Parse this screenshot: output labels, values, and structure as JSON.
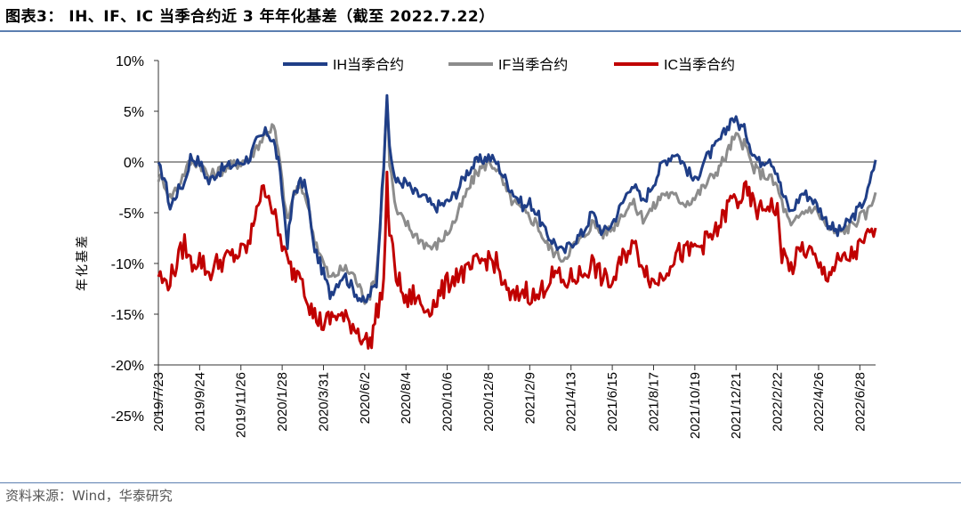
{
  "header": {
    "title": "图表3： IH、IF、IC 当季合约近 3 年年化基差（截至 2022.7.22）"
  },
  "footer": {
    "source": "资料来源：Wind，华泰研究"
  },
  "colors": {
    "IH": "#1f3e87",
    "IF": "#8c8c8c",
    "IC": "#c00000",
    "rule": "#5b7fb0"
  },
  "chart_data": {
    "type": "line",
    "title": "",
    "ylabel": "年化基差",
    "xlabel": "",
    "ylim": [
      -25,
      10
    ],
    "yticks": [
      "10%",
      "5%",
      "0%",
      "-5%",
      "-10%",
      "-15%",
      "-20%",
      "-25%"
    ],
    "xlim": [
      "2019-07-23",
      "2022-07-22"
    ],
    "xticks": [
      "2019/7/23",
      "2019/9/24",
      "2019/11/26",
      "2020/1/28",
      "2020/3/31",
      "2020/6/2",
      "2020/8/4",
      "2020/10/6",
      "2020/12/8",
      "2021/2/9",
      "2021/4/13",
      "2021/6/15",
      "2021/8/17",
      "2021/10/19",
      "2021/12/21",
      "2022/2/22",
      "2022/4/26",
      "2022/6/28"
    ],
    "grid": false,
    "legend_position": "top",
    "series": [
      {
        "name": "IH当季合约",
        "points": [
          [
            "2019-07-23",
            -0.5
          ],
          [
            "2019-08-01",
            -1.5
          ],
          [
            "2019-08-10",
            -4.5
          ],
          [
            "2019-08-20",
            -3
          ],
          [
            "2019-09-01",
            -2
          ],
          [
            "2019-09-10",
            0.5
          ],
          [
            "2019-09-24",
            0
          ],
          [
            "2019-10-08",
            -2
          ],
          [
            "2019-10-20",
            -1
          ],
          [
            "2019-11-05",
            -0.5
          ],
          [
            "2019-11-26",
            0
          ],
          [
            "2019-12-10",
            0.5
          ],
          [
            "2019-12-20",
            2
          ],
          [
            "2020-01-05",
            3
          ],
          [
            "2020-01-15",
            2
          ],
          [
            "2020-01-22",
            0
          ],
          [
            "2020-01-28",
            -3
          ],
          [
            "2020-02-05",
            -8
          ],
          [
            "2020-02-15",
            -3
          ],
          [
            "2020-02-25",
            -2
          ],
          [
            "2020-03-05",
            -2.5
          ],
          [
            "2020-03-15",
            -8
          ],
          [
            "2020-03-31",
            -11
          ],
          [
            "2020-04-10",
            -13
          ],
          [
            "2020-04-20",
            -12
          ],
          [
            "2020-05-01",
            -11
          ],
          [
            "2020-05-15",
            -12.5
          ],
          [
            "2020-06-02",
            -14
          ],
          [
            "2020-06-10",
            -13
          ],
          [
            "2020-06-20",
            -12
          ],
          [
            "2020-07-01",
            0
          ],
          [
            "2020-07-06",
            7
          ],
          [
            "2020-07-10",
            1
          ],
          [
            "2020-07-20",
            -2
          ],
          [
            "2020-08-04",
            -2
          ],
          [
            "2020-08-15",
            -3
          ],
          [
            "2020-09-01",
            -3.5
          ],
          [
            "2020-09-15",
            -4.5
          ],
          [
            "2020-10-06",
            -4
          ],
          [
            "2020-10-20",
            -3
          ],
          [
            "2020-11-05",
            -1
          ],
          [
            "2020-11-20",
            0
          ],
          [
            "2020-12-08",
            0.5
          ],
          [
            "2020-12-20",
            0
          ],
          [
            "2021-01-05",
            -2
          ],
          [
            "2021-01-15",
            -3
          ],
          [
            "2021-02-01",
            -4.5
          ],
          [
            "2021-02-09",
            -4
          ],
          [
            "2021-02-20",
            -5
          ],
          [
            "2021-03-05",
            -7
          ],
          [
            "2021-03-20",
            -8
          ],
          [
            "2021-04-01",
            -9
          ],
          [
            "2021-04-13",
            -8
          ],
          [
            "2021-05-01",
            -7
          ],
          [
            "2021-05-15",
            -5
          ],
          [
            "2021-06-01",
            -7
          ],
          [
            "2021-06-15",
            -6
          ],
          [
            "2021-07-01",
            -4
          ],
          [
            "2021-07-15",
            -2
          ],
          [
            "2021-08-01",
            -4
          ],
          [
            "2021-08-17",
            -2
          ],
          [
            "2021-09-01",
            0
          ],
          [
            "2021-09-20",
            1
          ],
          [
            "2021-10-05",
            -0.5
          ],
          [
            "2021-10-19",
            -2
          ],
          [
            "2021-11-01",
            0
          ],
          [
            "2021-11-20",
            1.5
          ],
          [
            "2021-12-05",
            3
          ],
          [
            "2021-12-15",
            4.5
          ],
          [
            "2021-12-21",
            4
          ],
          [
            "2022-01-05",
            3
          ],
          [
            "2022-01-15",
            1
          ],
          [
            "2022-01-25",
            0
          ],
          [
            "2022-02-10",
            0.5
          ],
          [
            "2022-02-22",
            -1
          ],
          [
            "2022-03-01",
            -3
          ],
          [
            "2022-03-15",
            -5
          ],
          [
            "2022-04-01",
            -3
          ],
          [
            "2022-04-15",
            -3.5
          ],
          [
            "2022-04-26",
            -4.5
          ],
          [
            "2022-05-10",
            -6
          ],
          [
            "2022-05-25",
            -7
          ],
          [
            "2022-06-10",
            -6
          ],
          [
            "2022-06-28",
            -4.5
          ],
          [
            "2022-07-10",
            -3
          ],
          [
            "2022-07-22",
            0.2
          ]
        ]
      },
      {
        "name": "IF当季合约",
        "points": [
          [
            "2019-07-23",
            -1.5
          ],
          [
            "2019-08-01",
            -2
          ],
          [
            "2019-08-10",
            -3.5
          ],
          [
            "2019-08-20",
            -2.5
          ],
          [
            "2019-09-01",
            -1
          ],
          [
            "2019-09-10",
            0
          ],
          [
            "2019-09-24",
            0
          ],
          [
            "2019-10-08",
            -1.5
          ],
          [
            "2019-10-20",
            -1
          ],
          [
            "2019-11-05",
            -0.5
          ],
          [
            "2019-11-26",
            0
          ],
          [
            "2019-12-10",
            0.5
          ],
          [
            "2019-12-20",
            1.5
          ],
          [
            "2020-01-05",
            3
          ],
          [
            "2020-01-15",
            3.5
          ],
          [
            "2020-01-22",
            1
          ],
          [
            "2020-01-28",
            -2
          ],
          [
            "2020-02-05",
            -6
          ],
          [
            "2020-02-15",
            -3
          ],
          [
            "2020-02-25",
            -2.5
          ],
          [
            "2020-03-05",
            -3.5
          ],
          [
            "2020-03-15",
            -7
          ],
          [
            "2020-03-31",
            -10
          ],
          [
            "2020-04-10",
            -11.5
          ],
          [
            "2020-04-20",
            -11
          ],
          [
            "2020-05-01",
            -10.5
          ],
          [
            "2020-05-15",
            -11
          ],
          [
            "2020-06-02",
            -13.5
          ],
          [
            "2020-06-10",
            -13
          ],
          [
            "2020-06-20",
            -11
          ],
          [
            "2020-07-01",
            -1
          ],
          [
            "2020-07-06",
            6.5
          ],
          [
            "2020-07-10",
            0
          ],
          [
            "2020-07-20",
            -5
          ],
          [
            "2020-08-04",
            -6
          ],
          [
            "2020-08-15",
            -7
          ],
          [
            "2020-09-01",
            -8
          ],
          [
            "2020-09-15",
            -8.5
          ],
          [
            "2020-10-06",
            -7
          ],
          [
            "2020-10-20",
            -5.5
          ],
          [
            "2020-11-05",
            -3
          ],
          [
            "2020-11-20",
            -1
          ],
          [
            "2020-12-08",
            0
          ],
          [
            "2020-12-20",
            -0.5
          ],
          [
            "2021-01-05",
            -3
          ],
          [
            "2021-01-15",
            -4
          ],
          [
            "2021-02-01",
            -5
          ],
          [
            "2021-02-09",
            -5.5
          ],
          [
            "2021-02-20",
            -6
          ],
          [
            "2021-03-05",
            -8
          ],
          [
            "2021-03-20",
            -9
          ],
          [
            "2021-04-01",
            -9.5
          ],
          [
            "2021-04-13",
            -8.5
          ],
          [
            "2021-05-01",
            -7.5
          ],
          [
            "2021-05-15",
            -6
          ],
          [
            "2021-06-01",
            -7
          ],
          [
            "2021-06-15",
            -6.5
          ],
          [
            "2021-07-01",
            -5
          ],
          [
            "2021-07-15",
            -4
          ],
          [
            "2021-08-01",
            -5.5
          ],
          [
            "2021-08-17",
            -4.5
          ],
          [
            "2021-09-01",
            -3
          ],
          [
            "2021-09-20",
            -3.5
          ],
          [
            "2021-10-05",
            -4
          ],
          [
            "2021-10-19",
            -3.5
          ],
          [
            "2021-11-01",
            -2.5
          ],
          [
            "2021-11-20",
            -1
          ],
          [
            "2021-12-05",
            0.5
          ],
          [
            "2021-12-15",
            2
          ],
          [
            "2021-12-21",
            2.5
          ],
          [
            "2022-01-05",
            1.5
          ],
          [
            "2022-01-15",
            -0.5
          ],
          [
            "2022-01-25",
            -1
          ],
          [
            "2022-02-10",
            -1.5
          ],
          [
            "2022-02-22",
            -2.5
          ],
          [
            "2022-03-01",
            -4
          ],
          [
            "2022-03-15",
            -6.5
          ],
          [
            "2022-04-01",
            -5
          ],
          [
            "2022-04-15",
            -4.5
          ],
          [
            "2022-04-26",
            -5
          ],
          [
            "2022-05-10",
            -6.5
          ],
          [
            "2022-05-25",
            -7
          ],
          [
            "2022-06-10",
            -6.5
          ],
          [
            "2022-06-28",
            -5.5
          ],
          [
            "2022-07-10",
            -5
          ],
          [
            "2022-07-22",
            -3
          ]
        ]
      },
      {
        "name": "IC当季合约",
        "points": [
          [
            "2019-07-23",
            -11
          ],
          [
            "2019-08-01",
            -12
          ],
          [
            "2019-08-10",
            -11.5
          ],
          [
            "2019-08-20",
            -10
          ],
          [
            "2019-09-01",
            -8
          ],
          [
            "2019-09-10",
            -10
          ],
          [
            "2019-09-24",
            -9.5
          ],
          [
            "2019-10-08",
            -11
          ],
          [
            "2019-10-20",
            -10
          ],
          [
            "2019-11-05",
            -9.5
          ],
          [
            "2019-11-26",
            -9
          ],
          [
            "2019-12-10",
            -8
          ],
          [
            "2019-12-20",
            -4
          ],
          [
            "2020-01-05",
            -2.5
          ],
          [
            "2020-01-15",
            -5
          ],
          [
            "2020-01-22",
            -7
          ],
          [
            "2020-01-28",
            -8
          ],
          [
            "2020-02-05",
            -10
          ],
          [
            "2020-02-15",
            -11
          ],
          [
            "2020-02-25",
            -10.5
          ],
          [
            "2020-03-05",
            -13
          ],
          [
            "2020-03-15",
            -15
          ],
          [
            "2020-03-31",
            -16
          ],
          [
            "2020-04-10",
            -15.5
          ],
          [
            "2020-04-20",
            -15
          ],
          [
            "2020-05-01",
            -15.5
          ],
          [
            "2020-05-15",
            -16
          ],
          [
            "2020-06-02",
            -17.5
          ],
          [
            "2020-06-10",
            -18
          ],
          [
            "2020-06-20",
            -15
          ],
          [
            "2020-07-01",
            -12
          ],
          [
            "2020-07-06",
            -2
          ],
          [
            "2020-07-10",
            -7
          ],
          [
            "2020-07-20",
            -11
          ],
          [
            "2020-08-04",
            -14
          ],
          [
            "2020-08-15",
            -13
          ],
          [
            "2020-09-01",
            -14.5
          ],
          [
            "2020-09-15",
            -14
          ],
          [
            "2020-10-06",
            -12
          ],
          [
            "2020-10-20",
            -11
          ],
          [
            "2020-11-05",
            -11
          ],
          [
            "2020-11-20",
            -10
          ],
          [
            "2020-12-08",
            -9.5
          ],
          [
            "2020-12-20",
            -10
          ],
          [
            "2021-01-05",
            -13
          ],
          [
            "2021-01-15",
            -13.5
          ],
          [
            "2021-02-01",
            -12.5
          ],
          [
            "2021-02-09",
            -13
          ],
          [
            "2021-02-20",
            -13.5
          ],
          [
            "2021-03-05",
            -12
          ],
          [
            "2021-03-20",
            -11
          ],
          [
            "2021-04-01",
            -12
          ],
          [
            "2021-04-13",
            -11.5
          ],
          [
            "2021-05-01",
            -11
          ],
          [
            "2021-05-15",
            -10
          ],
          [
            "2021-06-01",
            -11.5
          ],
          [
            "2021-06-15",
            -12
          ],
          [
            "2021-07-01",
            -9.5
          ],
          [
            "2021-07-15",
            -8
          ],
          [
            "2021-08-01",
            -10
          ],
          [
            "2021-08-17",
            -12
          ],
          [
            "2021-09-01",
            -11
          ],
          [
            "2021-09-20",
            -9
          ],
          [
            "2021-10-05",
            -9
          ],
          [
            "2021-10-19",
            -8.5
          ],
          [
            "2021-11-01",
            -8
          ],
          [
            "2021-11-20",
            -7
          ],
          [
            "2021-12-05",
            -5
          ],
          [
            "2021-12-15",
            -3.5
          ],
          [
            "2021-12-21",
            -4
          ],
          [
            "2022-01-05",
            -3
          ],
          [
            "2022-01-15",
            -4
          ],
          [
            "2022-01-25",
            -5
          ],
          [
            "2022-02-10",
            -4
          ],
          [
            "2022-02-22",
            -5
          ],
          [
            "2022-03-01",
            -9
          ],
          [
            "2022-03-15",
            -10.5
          ],
          [
            "2022-04-01",
            -8.5
          ],
          [
            "2022-04-15",
            -9
          ],
          [
            "2022-04-26",
            -10.5
          ],
          [
            "2022-05-10",
            -11
          ],
          [
            "2022-05-25",
            -10
          ],
          [
            "2022-06-10",
            -9.5
          ],
          [
            "2022-06-28",
            -8.5
          ],
          [
            "2022-07-10",
            -7.5
          ],
          [
            "2022-07-22",
            -6.5
          ]
        ]
      }
    ]
  }
}
